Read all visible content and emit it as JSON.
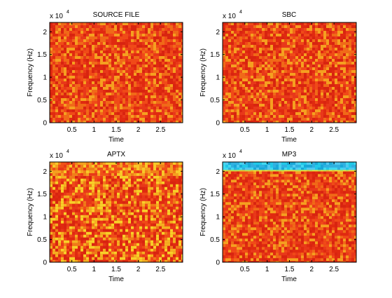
{
  "chart_data": [
    {
      "type": "heatmap",
      "title": "SOURCE FILE",
      "xlabel": "Time",
      "ylabel": "Frequency (Hz)",
      "y_exponent_label": "x 10",
      "y_exponent": "4",
      "xlim": [
        0,
        3
      ],
      "ylim": [
        0,
        2.205
      ],
      "x_ticks": [
        0.5,
        1,
        1.5,
        2,
        2.5
      ],
      "x_tick_labels": [
        "0.5",
        "1",
        "1.5",
        "2",
        "2.5"
      ],
      "y_ticks": [
        0,
        0.5,
        1,
        1.5,
        2
      ],
      "y_tick_labels": [
        "0",
        "0.5",
        "1",
        "1.5",
        "2"
      ],
      "bands": [
        {
          "y_from": 0,
          "y_to": 2.205,
          "level": "high",
          "palette": [
            "#e02a10",
            "#e8381a",
            "#f04a18",
            "#d82410",
            "#f06a18",
            "#f5a020"
          ]
        }
      ]
    },
    {
      "type": "heatmap",
      "title": "SBC",
      "xlabel": "Time",
      "ylabel": "Frequency (Hz)",
      "y_exponent_label": "x 10",
      "y_exponent": "4",
      "xlim": [
        0,
        3
      ],
      "ylim": [
        0,
        2.205
      ],
      "x_ticks": [
        0.5,
        1,
        1.5,
        2,
        2.5
      ],
      "x_tick_labels": [
        "0.5",
        "1",
        "1.5",
        "2",
        "2.5"
      ],
      "y_ticks": [
        0,
        0.5,
        1,
        1.5,
        2
      ],
      "y_tick_labels": [
        "0",
        "0.5",
        "1",
        "1.5",
        "2"
      ],
      "bands": [
        {
          "y_from": 0,
          "y_to": 2.205,
          "level": "high",
          "palette": [
            "#e02a10",
            "#e8381a",
            "#f04a18",
            "#d82410",
            "#f06a18",
            "#f5a020"
          ]
        }
      ]
    },
    {
      "type": "heatmap",
      "title": "APTX",
      "xlabel": "Time",
      "ylabel": "Frequency (Hz)",
      "y_exponent_label": "x 10",
      "y_exponent": "4",
      "xlim": [
        0,
        3
      ],
      "ylim": [
        0,
        2.205
      ],
      "x_ticks": [
        0.5,
        1,
        1.5,
        2,
        2.5
      ],
      "x_tick_labels": [
        "0.5",
        "1",
        "1.5",
        "2",
        "2.5"
      ],
      "y_ticks": [
        0,
        0.5,
        1,
        1.5,
        2
      ],
      "y_tick_labels": [
        "0",
        "0.5",
        "1",
        "1.5",
        "2"
      ],
      "bands": [
        {
          "y_from": 0,
          "y_to": 1.9,
          "level": "high",
          "palette": [
            "#e02a10",
            "#e8381a",
            "#f04a18",
            "#d82410",
            "#f07a18",
            "#f5b020",
            "#f8d028"
          ]
        },
        {
          "y_from": 1.9,
          "y_to": 2.205,
          "level": "very-high",
          "palette": [
            "#f08018",
            "#f5a020",
            "#f8c828",
            "#f05018",
            "#e83818"
          ]
        }
      ]
    },
    {
      "type": "heatmap",
      "title": "MP3",
      "xlabel": "Time",
      "ylabel": "Frequency (Hz)",
      "y_exponent_label": "x 10",
      "y_exponent": "4",
      "xlim": [
        0,
        3
      ],
      "ylim": [
        0,
        2.205
      ],
      "x_ticks": [
        0.5,
        1,
        1.5,
        2,
        2.5
      ],
      "x_tick_labels": [
        "0.5",
        "1",
        "1.5",
        "2",
        "2.5"
      ],
      "y_ticks": [
        0,
        0.5,
        1,
        1.5,
        2
      ],
      "y_tick_labels": [
        "0",
        "0.5",
        "1",
        "1.5",
        "2"
      ],
      "bands": [
        {
          "y_from": 0,
          "y_to": 2.0,
          "level": "high",
          "palette": [
            "#e02a10",
            "#e8381a",
            "#f04a18",
            "#d82410",
            "#f06a18",
            "#f5a020"
          ]
        },
        {
          "y_from": 2.0,
          "y_to": 2.03,
          "level": "transition",
          "palette": [
            "#f0e030",
            "#c8e040",
            "#e8c828"
          ]
        },
        {
          "y_from": 2.03,
          "y_to": 2.205,
          "level": "low",
          "palette": [
            "#20c8e8",
            "#30b0e0",
            "#40d8f0",
            "#18a8d8",
            "#50c8f0"
          ]
        }
      ]
    }
  ]
}
